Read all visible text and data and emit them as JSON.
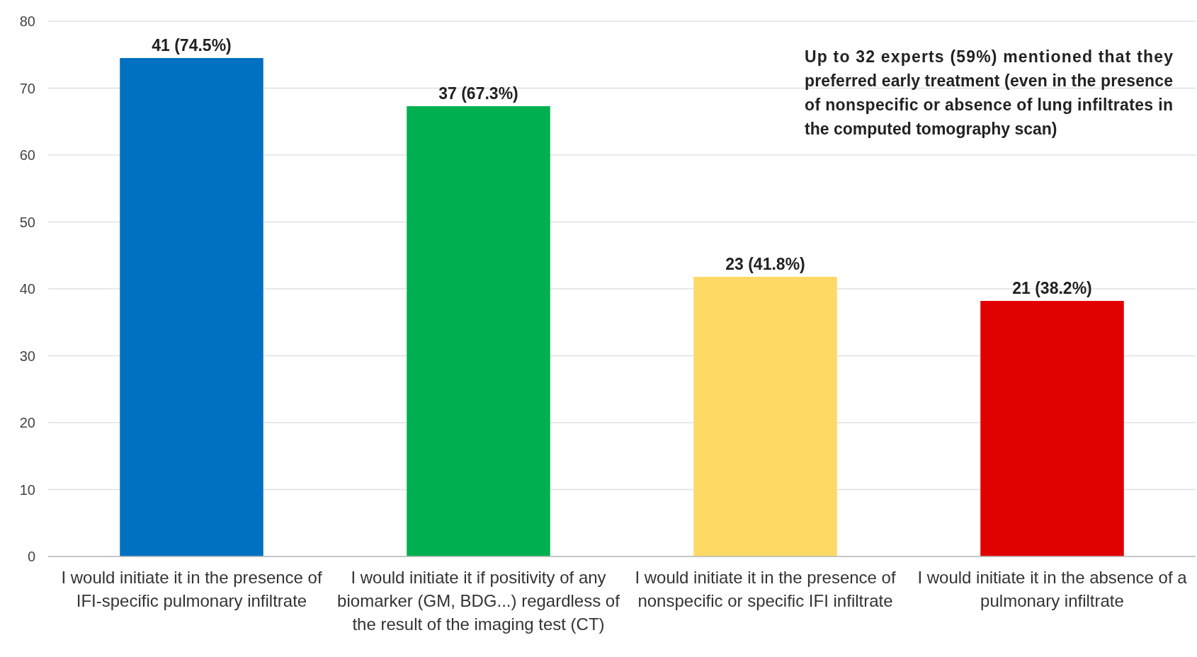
{
  "chart_data": {
    "type": "bar",
    "categories": [
      "I would initiate it in the presence of IFI-specific pulmonary infiltrate",
      "I would initiate it if positivity of any biomarker (GM, BDG...) regardless of the result of the imaging test (CT)",
      "I would initiate it in the presence of nonspecific or specific IFI infiltrate",
      "I would initiate it in the absence of a pulmonary infiltrate"
    ],
    "values": [
      74.5,
      67.3,
      41.8,
      38.2
    ],
    "colors": [
      "#0070c0",
      "#00b050",
      "#ffd966",
      "#e00000"
    ],
    "value_labels": [
      "41 (74.5%)",
      "37 (67.3%)",
      "23 (41.8%)",
      "21 (38.2%)"
    ],
    "ylim": [
      0,
      80
    ],
    "yticks": [
      0,
      10,
      20,
      30,
      40,
      50,
      60,
      70,
      80
    ],
    "grid": "y",
    "annotations": [
      "Up to 32 experts (59%) mentioned that they preferred early treatment (even in the presence of nonspecific or absence of lung infiltrates in the computed tomography scan)"
    ]
  }
}
